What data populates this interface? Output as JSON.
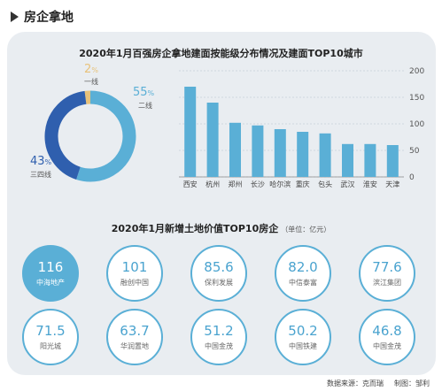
{
  "header": {
    "title": "房企拿地"
  },
  "chart_data": [
    {
      "type": "pie",
      "title": "2020年1月百强房企拿地建面按能级分布情况及建面TOP10城市",
      "slices": [
        {
          "label": "一线",
          "value": 2,
          "display": "2",
          "color": "#e8c27a"
        },
        {
          "label": "二线",
          "value": 55,
          "display": "55",
          "color": "#5aafd6"
        },
        {
          "label": "三四线",
          "value": 43,
          "display": "43",
          "color": "#2f5fae"
        }
      ],
      "unit_symbol": "%"
    },
    {
      "type": "bar",
      "categories": [
        "西安",
        "杭州",
        "郑州",
        "长沙",
        "哈尔滨",
        "重庆",
        "包头",
        "武汉",
        "淮安",
        "天津"
      ],
      "values": [
        170,
        140,
        102,
        97,
        90,
        85,
        82,
        62,
        62,
        60
      ],
      "ylim": [
        0,
        200
      ],
      "yticks": [
        0,
        50,
        100,
        150,
        200
      ],
      "color": "#5aafd6"
    },
    {
      "type": "table",
      "title": "2020年1月新增土地价值TOP10房企",
      "unit": "（单位：亿元）",
      "items": [
        {
          "name": "中海地产",
          "value": "116",
          "highlight": true
        },
        {
          "name": "融创中国",
          "value": "101"
        },
        {
          "name": "保利发展",
          "value": "85.6"
        },
        {
          "name": "中信泰富",
          "value": "82.0"
        },
        {
          "name": "滨江集团",
          "value": "77.6"
        },
        {
          "name": "阳光城",
          "value": "71.5"
        },
        {
          "name": "华润置地",
          "value": "63.7"
        },
        {
          "name": "中国金茂",
          "value": "51.2"
        },
        {
          "name": "中国铁建",
          "value": "50.2"
        },
        {
          "name": "中国金茂",
          "value": "46.8"
        }
      ]
    }
  ],
  "footer": {
    "source": "数据来源：克而瑞",
    "author": "制图：邹利"
  }
}
